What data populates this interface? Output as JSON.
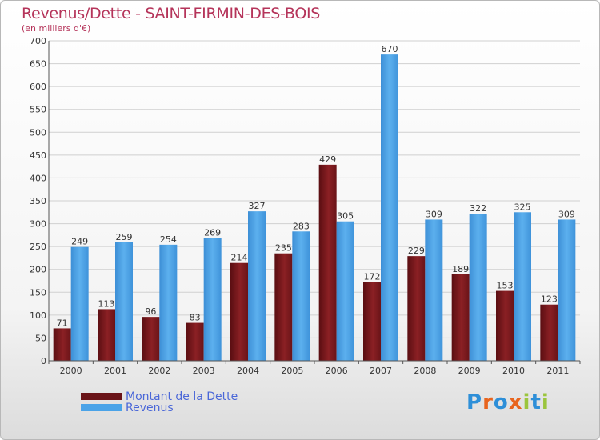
{
  "title": "Revenus/Dette - SAINT-FIRMIN-DES-BOIS",
  "subtitle": "(en milliers d'€)",
  "logo_text": "Proxiti",
  "colors": {
    "dette": "#7a1a1e",
    "revenus": "#4aa3e8",
    "title": "#b5345a",
    "legend_text": "#4a67d8"
  },
  "chart_data": {
    "type": "bar",
    "title": "Revenus/Dette - SAINT-FIRMIN-DES-BOIS",
    "ylabel": "(en milliers d'€)",
    "xlabel": "",
    "categories": [
      "2000",
      "2001",
      "2002",
      "2003",
      "2004",
      "2005",
      "2006",
      "2007",
      "2008",
      "2009",
      "2010",
      "2011"
    ],
    "series": [
      {
        "name": "Montant de la Dette",
        "values": [
          71,
          113,
          96,
          83,
          214,
          235,
          429,
          172,
          229,
          189,
          153,
          123
        ]
      },
      {
        "name": "Revenus",
        "values": [
          249,
          259,
          254,
          269,
          327,
          283,
          305,
          670,
          309,
          322,
          325,
          309
        ]
      }
    ],
    "ylim": [
      0,
      700
    ],
    "yticks": [
      0,
      50,
      100,
      150,
      200,
      250,
      300,
      350,
      400,
      450,
      500,
      550,
      600,
      650,
      700
    ],
    "grid": true,
    "legend": "bottom-left"
  }
}
